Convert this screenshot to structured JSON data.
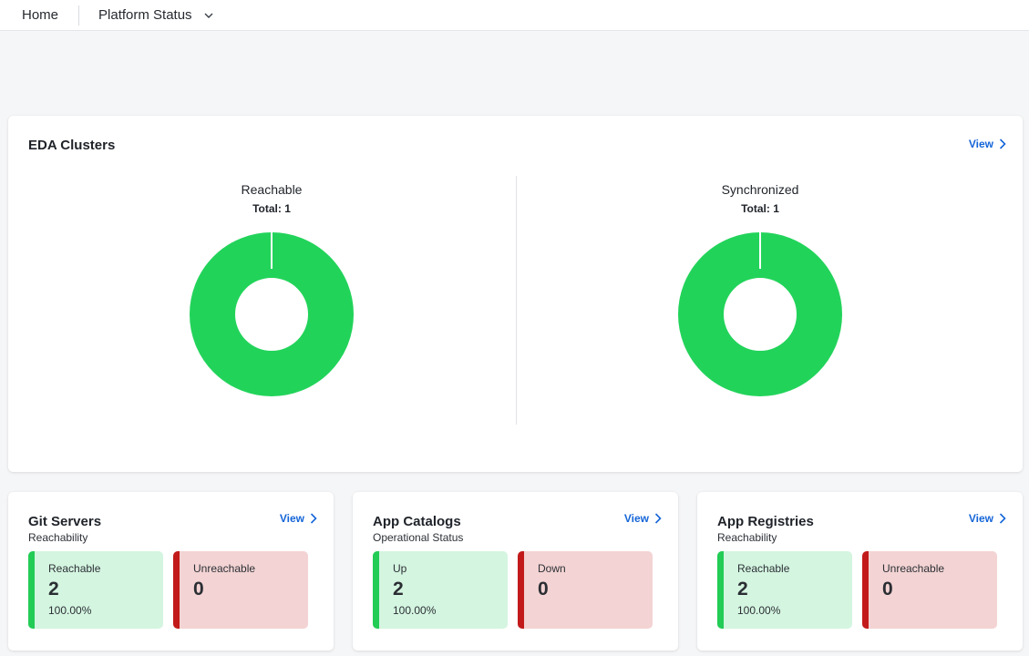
{
  "nav": {
    "home": "Home",
    "platform_status": "Platform Status"
  },
  "eda_clusters": {
    "title": "EDA Clusters",
    "view": "View",
    "reachable": {
      "title": "Reachable",
      "total": "Total: 1",
      "ok_fraction": 1.0,
      "color": "#22d35a"
    },
    "synchronized": {
      "title": "Synchronized",
      "total": "Total: 1",
      "ok_fraction": 1.0,
      "color": "#22d35a"
    }
  },
  "git_servers": {
    "title": "Git Servers",
    "subtitle": "Reachability",
    "view": "View",
    "ok": {
      "label": "Reachable",
      "value": "2",
      "pct": "100.00%"
    },
    "bad": {
      "label": "Unreachable",
      "value": "0"
    }
  },
  "app_catalogs": {
    "title": "App Catalogs",
    "subtitle": "Operational Status",
    "view": "View",
    "ok": {
      "label": "Up",
      "value": "2",
      "pct": "100.00%"
    },
    "bad": {
      "label": "Down",
      "value": "0"
    }
  },
  "app_registries": {
    "title": "App Registries",
    "subtitle": "Reachability",
    "view": "View",
    "ok": {
      "label": "Reachable",
      "value": "2",
      "pct": "100.00%"
    },
    "bad": {
      "label": "Unreachable",
      "value": "0"
    }
  },
  "colors": {
    "ok": "#22cc55",
    "bad": "#c21a1a",
    "link": "#1565d8"
  }
}
